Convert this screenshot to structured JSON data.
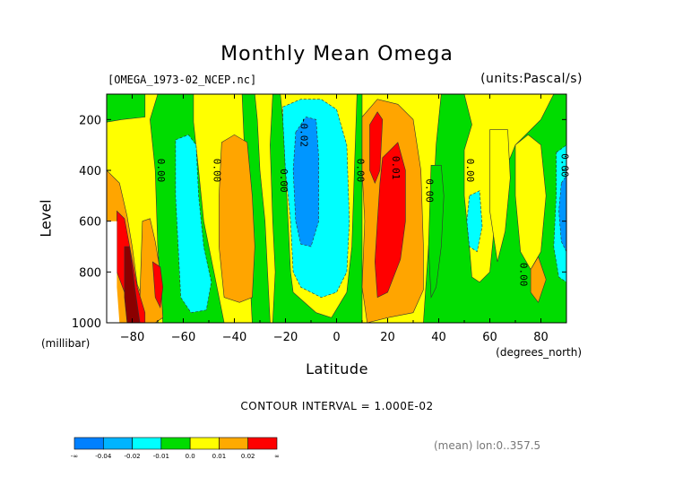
{
  "chart_data": {
    "type": "heatmap",
    "title": "Monthly Mean Omega",
    "file_label": "[OMEGA_1973-02_NCEP.nc]",
    "units_label": "(units:Pascal/s)",
    "xlabel": "Latitude",
    "xunit": "(degrees_north)",
    "ylabel": "Level",
    "yunit": "(millibar)",
    "xlim": [
      -90,
      90
    ],
    "ylim": [
      1000,
      100
    ],
    "x_ticks": [
      -80,
      -60,
      -40,
      -20,
      0,
      20,
      40,
      60,
      80
    ],
    "y_ticks": [
      200,
      400,
      600,
      800,
      1000
    ],
    "contour_interval_text": "CONTOUR INTERVAL = 1.000E-02",
    "mean_text": "(mean) lon:0..357.5",
    "contour_labels": [
      {
        "text": "0.00",
        "x": -70,
        "y": 400
      },
      {
        "text": "0.00",
        "x": -48,
        "y": 400
      },
      {
        "text": "0.00",
        "x": -22,
        "y": 440
      },
      {
        "text": "-0.02",
        "x": -14,
        "y": 250
      },
      {
        "text": "0.00",
        "x": 8,
        "y": 400
      },
      {
        "text": "0.01",
        "x": 22,
        "y": 390
      },
      {
        "text": "0.00",
        "x": 35,
        "y": 480
      },
      {
        "text": "0.00",
        "x": 51,
        "y": 400
      },
      {
        "text": "0.00",
        "x": 72,
        "y": 810
      },
      {
        "text": "0.00",
        "x": 88,
        "y": 380
      }
    ],
    "regions": [
      {
        "level": "green",
        "points": [
          [
            -90,
            100
          ],
          [
            -75,
            100
          ],
          [
            -75,
            190
          ],
          [
            -84,
            200
          ],
          [
            -90,
            210
          ]
        ]
      },
      {
        "level": "green",
        "points": [
          [
            -70,
            100
          ],
          [
            -56,
            100
          ],
          [
            -56,
            210
          ],
          [
            -54,
            400
          ],
          [
            -52,
            600
          ],
          [
            -50,
            700
          ],
          [
            -46,
            900
          ],
          [
            -44,
            1000
          ],
          [
            -68,
            1000
          ],
          [
            -70,
            700
          ],
          [
            -71,
            400
          ],
          [
            -73,
            200
          ]
        ]
      },
      {
        "level": "green",
        "points": [
          [
            -37,
            100
          ],
          [
            -32,
            100
          ],
          [
            -31,
            200
          ],
          [
            -30,
            400
          ],
          [
            -28,
            600
          ],
          [
            -27,
            800
          ],
          [
            -26,
            1000
          ],
          [
            -33,
            1000
          ],
          [
            -34,
            800
          ]
        ]
      },
      {
        "level": "green",
        "points": [
          [
            -25,
            100
          ],
          [
            -22,
            100
          ],
          [
            -21,
            200
          ],
          [
            -20,
            400
          ],
          [
            -19,
            600
          ],
          [
            -18,
            800
          ],
          [
            -17,
            880
          ],
          [
            -8,
            960
          ],
          [
            -2,
            980
          ],
          [
            4,
            880
          ],
          [
            6,
            700
          ],
          [
            7,
            400
          ],
          [
            8,
            100
          ],
          [
            10,
            100
          ],
          [
            10,
            1000
          ],
          [
            -25,
            1000
          ],
          [
            -24,
            800
          ],
          [
            -25,
            600
          ],
          [
            -26,
            300
          ]
        ]
      },
      {
        "level": "green",
        "points": [
          [
            41,
            100
          ],
          [
            50,
            100
          ],
          [
            53,
            220
          ],
          [
            50,
            320
          ],
          [
            50,
            500
          ],
          [
            52,
            700
          ],
          [
            53,
            820
          ],
          [
            56,
            840
          ],
          [
            60,
            800
          ],
          [
            62,
            600
          ],
          [
            64,
            500
          ],
          [
            66,
            400
          ],
          [
            70,
            300
          ],
          [
            75,
            250
          ],
          [
            80,
            200
          ],
          [
            85,
            100
          ],
          [
            90,
            100
          ],
          [
            90,
            1000
          ],
          [
            34,
            1000
          ],
          [
            36,
            700
          ],
          [
            38,
            500
          ],
          [
            39,
            300
          ]
        ]
      },
      {
        "level": "yellow",
        "points": [
          [
            60,
            240
          ],
          [
            67,
            240
          ],
          [
            68,
            430
          ],
          [
            66,
            640
          ],
          [
            63,
            760
          ],
          [
            60,
            560
          ]
        ]
      },
      {
        "level": "yellow",
        "points": [
          [
            70,
            300
          ],
          [
            75,
            260
          ],
          [
            80,
            300
          ],
          [
            82,
            500
          ],
          [
            80,
            720
          ],
          [
            76,
            790
          ],
          [
            72,
            720
          ],
          [
            70,
            500
          ]
        ]
      },
      {
        "level": "green",
        "points": [
          [
            37,
            380
          ],
          [
            41,
            380
          ],
          [
            42,
            500
          ],
          [
            41,
            700
          ],
          [
            39,
            860
          ],
          [
            37,
            900
          ],
          [
            36,
            700
          ]
        ]
      },
      {
        "level": "cyan",
        "points": [
          [
            -63,
            280
          ],
          [
            -58,
            260
          ],
          [
            -55,
            300
          ],
          [
            -54,
            500
          ],
          [
            -52,
            700
          ],
          [
            -49,
            840
          ],
          [
            -51,
            950
          ],
          [
            -57,
            960
          ],
          [
            -61,
            900
          ],
          [
            -62,
            700
          ],
          [
            -63,
            500
          ]
        ]
      },
      {
        "level": "cyan",
        "points": [
          [
            -21,
            150
          ],
          [
            -14,
            120
          ],
          [
            -6,
            120
          ],
          [
            0,
            160
          ],
          [
            4,
            300
          ],
          [
            5,
            600
          ],
          [
            4,
            800
          ],
          [
            0,
            880
          ],
          [
            -6,
            900
          ],
          [
            -14,
            860
          ],
          [
            -17,
            800
          ],
          [
            -18,
            600
          ],
          [
            -20,
            400
          ],
          [
            -21,
            200
          ]
        ]
      },
      {
        "level": "cyan",
        "points": [
          [
            52,
            500
          ],
          [
            56,
            480
          ],
          [
            57,
            620
          ],
          [
            55,
            720
          ],
          [
            52,
            700
          ],
          [
            51,
            600
          ]
        ]
      },
      {
        "level": "cyan",
        "points": [
          [
            86,
            330
          ],
          [
            90,
            300
          ],
          [
            90,
            840
          ],
          [
            87,
            820
          ],
          [
            85,
            700
          ],
          [
            86,
            500
          ]
        ]
      },
      {
        "level": "blue",
        "points": [
          [
            -16,
            250
          ],
          [
            -12,
            190
          ],
          [
            -8,
            200
          ],
          [
            -7,
            350
          ],
          [
            -7,
            600
          ],
          [
            -10,
            700
          ],
          [
            -14,
            690
          ],
          [
            -16,
            600
          ],
          [
            -17,
            400
          ]
        ]
      },
      {
        "level": "blue",
        "points": [
          [
            88,
            450
          ],
          [
            90,
            420
          ],
          [
            90,
            720
          ],
          [
            88,
            680
          ],
          [
            87,
            560
          ]
        ]
      },
      {
        "level": "orange",
        "points": [
          [
            -90,
            400
          ],
          [
            -85,
            450
          ],
          [
            -82,
            580
          ],
          [
            -80,
            700
          ],
          [
            -78,
            850
          ],
          [
            -74,
            950
          ],
          [
            -74,
            1000
          ],
          [
            -90,
            1000
          ]
        ]
      },
      {
        "level": "orange",
        "points": [
          [
            -76,
            600
          ],
          [
            -73,
            590
          ],
          [
            -71,
            680
          ],
          [
            -69,
            800
          ],
          [
            -68,
            980
          ],
          [
            -71,
            1000
          ],
          [
            -75,
            1000
          ],
          [
            -77,
            900
          ]
        ]
      },
      {
        "level": "orange",
        "points": [
          [
            -45,
            290
          ],
          [
            -40,
            260
          ],
          [
            -35,
            290
          ],
          [
            -33,
            500
          ],
          [
            -32,
            700
          ],
          [
            -33,
            900
          ],
          [
            -38,
            920
          ],
          [
            -44,
            900
          ],
          [
            -46,
            700
          ],
          [
            -46,
            500
          ]
        ]
      },
      {
        "level": "orange",
        "points": [
          [
            10,
            190
          ],
          [
            16,
            120
          ],
          [
            24,
            140
          ],
          [
            30,
            200
          ],
          [
            33,
            400
          ],
          [
            34,
            700
          ],
          [
            34,
            870
          ],
          [
            30,
            960
          ],
          [
            20,
            980
          ],
          [
            12,
            1000
          ],
          [
            10,
            860
          ],
          [
            11,
            600
          ],
          [
            10,
            400
          ]
        ]
      },
      {
        "level": "orange",
        "points": [
          [
            76,
            790
          ],
          [
            79,
            740
          ],
          [
            82,
            830
          ],
          [
            79,
            920
          ],
          [
            76,
            880
          ]
        ]
      },
      {
        "level": "red",
        "points": [
          [
            -86,
            560
          ],
          [
            -83,
            590
          ],
          [
            -81,
            700
          ],
          [
            -78,
            860
          ],
          [
            -75,
            960
          ],
          [
            -75,
            1000
          ],
          [
            -80,
            1000
          ],
          [
            -83,
            880
          ],
          [
            -86,
            800
          ]
        ]
      },
      {
        "level": "red",
        "points": [
          [
            -72,
            760
          ],
          [
            -69,
            780
          ],
          [
            -68,
            860
          ],
          [
            -69,
            940
          ],
          [
            -71,
            900
          ]
        ]
      },
      {
        "level": "red",
        "points": [
          [
            13,
            220
          ],
          [
            16,
            170
          ],
          [
            18,
            200
          ],
          [
            17,
            400
          ],
          [
            15,
            450
          ],
          [
            13,
            400
          ]
        ]
      },
      {
        "level": "red",
        "points": [
          [
            18,
            350
          ],
          [
            24,
            290
          ],
          [
            27,
            400
          ],
          [
            27,
            600
          ],
          [
            25,
            750
          ],
          [
            20,
            880
          ],
          [
            16,
            900
          ],
          [
            15,
            760
          ],
          [
            16,
            600
          ],
          [
            17,
            450
          ]
        ]
      },
      {
        "level": "darkred",
        "points": [
          [
            -83,
            700
          ],
          [
            -81,
            700
          ],
          [
            -79,
            860
          ],
          [
            -77,
            1000
          ],
          [
            -82,
            1000
          ],
          [
            -83,
            900
          ]
        ]
      },
      {
        "level": "white",
        "points": [
          [
            -90,
            600
          ],
          [
            -86,
            600
          ],
          [
            -86,
            860
          ],
          [
            -85,
            1000
          ],
          [
            -90,
            1000
          ]
        ]
      }
    ],
    "colorbar": {
      "colors": [
        "#0080ff",
        "#00b4ff",
        "#00ffff",
        "#00dc00",
        "#ffff00",
        "#ffaa00",
        "#ff0000"
      ],
      "labels": [
        "-∞",
        "-0.04",
        "-0.02",
        "-0.01",
        "0.0",
        "0.01",
        "0.02",
        "∞"
      ]
    },
    "level_colors": {
      "blue": "#0096ff",
      "cyan": "#00ffff",
      "green": "#00dc00",
      "yellow": "#ffff00",
      "orange": "#ffa500",
      "red": "#ff0000",
      "darkred": "#8b0000",
      "white": "#ffffff"
    }
  }
}
